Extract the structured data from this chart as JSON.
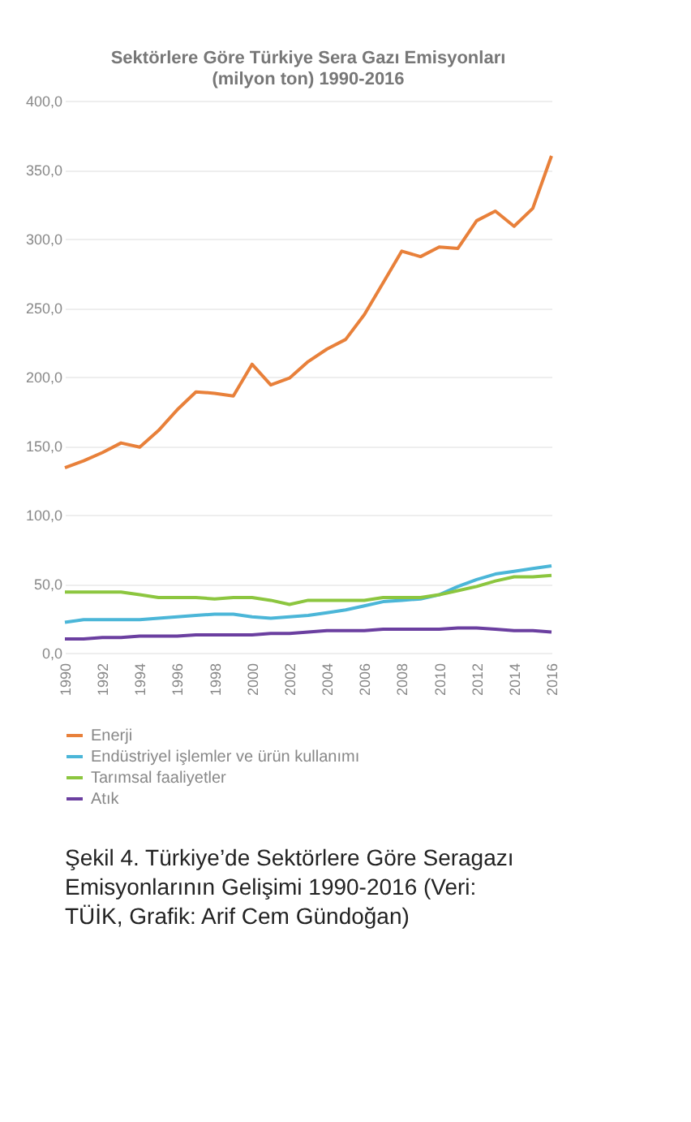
{
  "chart_data": {
    "type": "line",
    "title": "Sektörlere Göre Türkiye Sera Gazı Emisyonları (milyon ton) 1990-2016",
    "x": [
      1990,
      1991,
      1992,
      1993,
      1994,
      1995,
      1996,
      1997,
      1998,
      1999,
      2000,
      2001,
      2002,
      2003,
      2004,
      2005,
      2006,
      2007,
      2008,
      2009,
      2010,
      2011,
      2012,
      2013,
      2014,
      2015,
      2016
    ],
    "series": [
      {
        "name": "Enerji",
        "color": "#e8803a",
        "values": [
          134,
          139,
          145,
          152,
          149,
          161,
          176,
          189,
          188,
          186,
          209,
          194,
          199,
          211,
          220,
          227,
          245,
          268,
          291,
          287,
          294,
          293,
          313,
          320,
          309,
          322,
          360
        ]
      },
      {
        "name": "Endüstriyel işlemler ve ürün kullanımı",
        "color": "#4bb6d8",
        "values": [
          22,
          24,
          24,
          24,
          24,
          25,
          26,
          27,
          28,
          28,
          26,
          25,
          26,
          27,
          29,
          31,
          34,
          37,
          38,
          39,
          42,
          48,
          53,
          57,
          59,
          61,
          63
        ]
      },
      {
        "name": "Tarımsal faaliyetler",
        "color": "#8cc63f",
        "values": [
          44,
          44,
          44,
          44,
          42,
          40,
          40,
          40,
          39,
          40,
          40,
          38,
          35,
          38,
          38,
          38,
          38,
          40,
          40,
          40,
          42,
          45,
          48,
          52,
          55,
          55,
          56
        ]
      },
      {
        "name": "Atık",
        "color": "#6b3fa0",
        "values": [
          10,
          10,
          11,
          11,
          12,
          12,
          12,
          13,
          13,
          13,
          13,
          14,
          14,
          15,
          16,
          16,
          16,
          17,
          17,
          17,
          17,
          18,
          18,
          17,
          16,
          16,
          15
        ]
      }
    ],
    "xlim": [
      1990,
      2016
    ],
    "xticks": [
      1990,
      1992,
      1994,
      1996,
      1998,
      2000,
      2002,
      2004,
      2006,
      2008,
      2010,
      2012,
      2014,
      2016
    ],
    "ylim": [
      0,
      400
    ],
    "yticks": [
      {
        "value": 0,
        "label": "0,0"
      },
      {
        "value": 50,
        "label": "50,0"
      },
      {
        "value": 100,
        "label": "100,0"
      },
      {
        "value": 150,
        "label": "150,0"
      },
      {
        "value": 200,
        "label": "200,0"
      },
      {
        "value": 250,
        "label": "250,0"
      },
      {
        "value": 300,
        "label": "300,0"
      },
      {
        "value": 350,
        "label": "350,0"
      },
      {
        "value": 400,
        "label": "400,0"
      }
    ],
    "grid": "y",
    "legend": "bottom",
    "marker": "none",
    "line_style": "solid",
    "annotations": [
      "Şekil 4. Türkiye’de Sektörlere Göre Seragazı Emisyonlarının Gelişimi 1990-2016 (Veri: TÜİK, Grafik: Arif Cem Gündoğan)"
    ]
  }
}
